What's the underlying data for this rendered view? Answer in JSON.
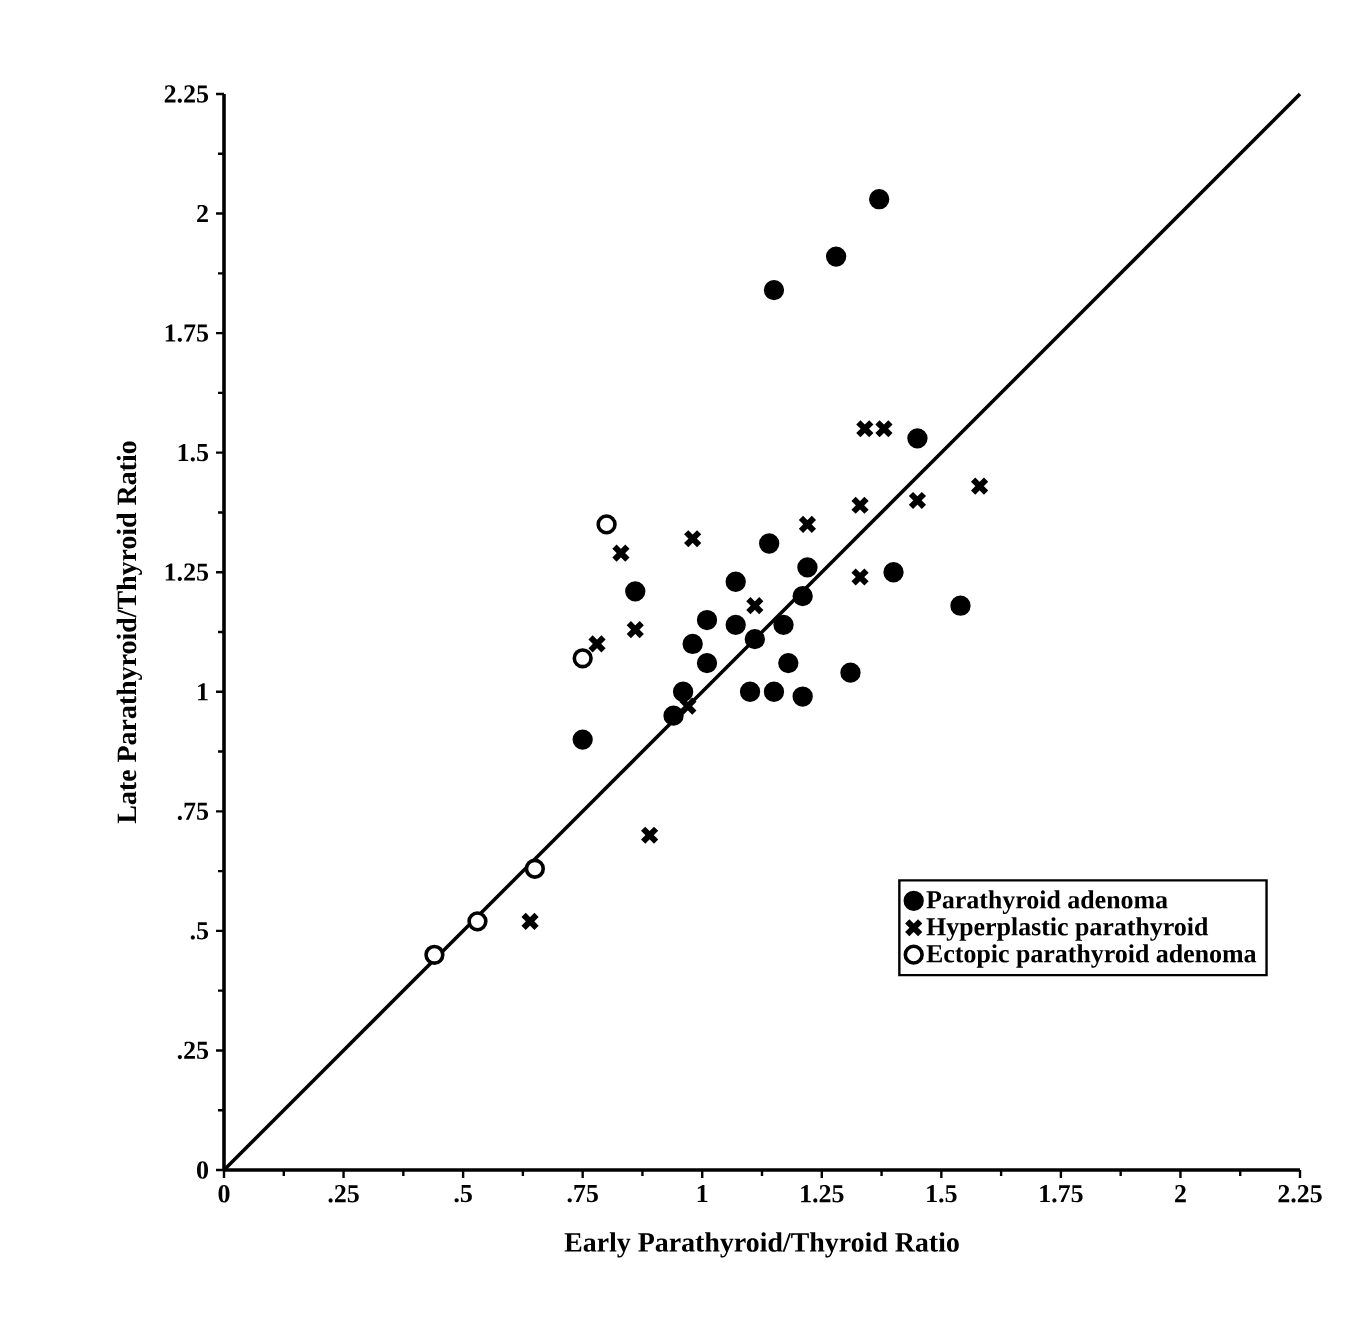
{
  "chart_data": {
    "type": "scatter",
    "xlabel": "Early Parathyroid/Thyroid Ratio",
    "ylabel": "Late Parathyroid/Thyroid Ratio",
    "xlim": [
      0,
      2.25
    ],
    "ylim": [
      0,
      2.25
    ],
    "xticks": [
      0,
      {
        "value": 0.25,
        "label": ".25"
      },
      {
        "value": 0.5,
        "label": ".5"
      },
      {
        "value": 0.75,
        "label": ".75"
      },
      1,
      1.25,
      1.5,
      1.75,
      2,
      2.25
    ],
    "yticks": [
      0,
      {
        "value": 0.25,
        "label": ".25"
      },
      {
        "value": 0.5,
        "label": ".5"
      },
      {
        "value": 0.75,
        "label": ".75"
      },
      1,
      1.25,
      1.5,
      1.75,
      2,
      2.25
    ],
    "grid": false,
    "legend": "bottom right",
    "series": [
      {
        "name": "Parathyroid adenoma",
        "color": "#000000",
        "marker": "circle",
        "x": [
          1.37,
          1.28,
          1.15,
          1.45,
          1.14,
          1.4,
          1.54,
          0.86,
          1.22,
          1.21,
          1.07,
          1.01,
          0.98,
          1.01,
          1.07,
          1.11,
          1.17,
          1.18,
          1.31,
          1.1,
          1.15,
          1.21,
          0.96,
          0.94,
          0.75
        ],
        "values": [
          2.03,
          1.91,
          1.84,
          1.53,
          1.31,
          1.25,
          1.18,
          1.21,
          1.26,
          1.2,
          1.23,
          1.15,
          1.1,
          1.06,
          1.14,
          1.11,
          1.14,
          1.06,
          1.04,
          1.0,
          1.0,
          0.99,
          1.0,
          0.95,
          0.9
        ]
      },
      {
        "name": "Hyperplastic   parathyroid",
        "color": "#000000",
        "marker": "cross",
        "x": [
          1.34,
          1.38,
          1.58,
          1.45,
          1.33,
          1.22,
          0.98,
          0.83,
          0.86,
          0.78,
          1.11,
          1.33,
          0.97,
          0.89,
          0.64
        ],
        "values": [
          1.55,
          1.55,
          1.43,
          1.4,
          1.39,
          1.35,
          1.32,
          1.29,
          1.13,
          1.1,
          1.18,
          1.24,
          0.97,
          0.7,
          0.52
        ]
      },
      {
        "name": "Ectopic parathyroid adenoma",
        "color": "#ffffff",
        "marker": "circle",
        "x": [
          0.8,
          0.75,
          0.44,
          0.53,
          0.65
        ],
        "values": [
          1.35,
          1.07,
          0.45,
          0.52,
          0.63
        ]
      },
      {
        "type": "line",
        "color": "#000000",
        "marker": "none",
        "line_style": "solid",
        "x": [
          0,
          2.25
        ],
        "values": [
          0,
          2.25
        ]
      }
    ]
  }
}
